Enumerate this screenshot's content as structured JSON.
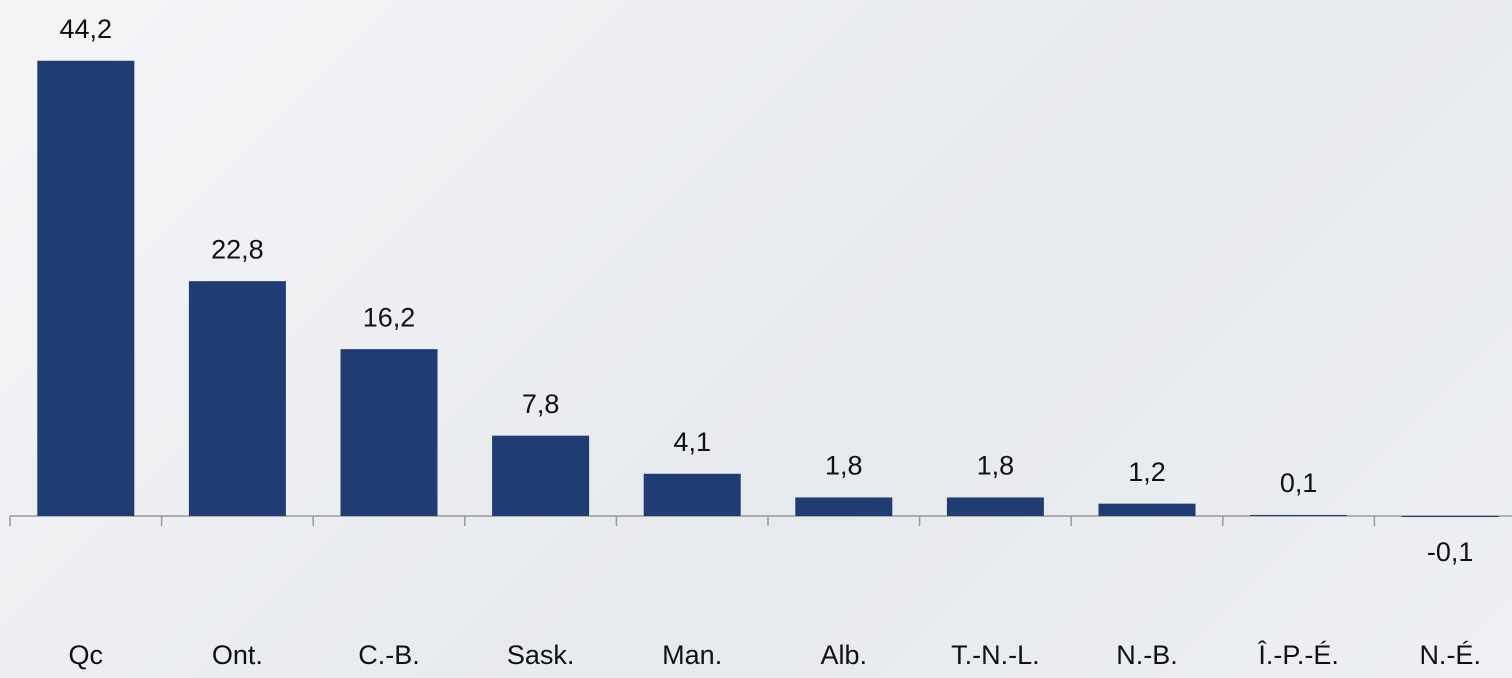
{
  "chart_data": {
    "type": "bar",
    "categories": [
      "Qc",
      "Ont.",
      "C.-B.",
      "Sask.",
      "Man.",
      "Alb.",
      "T.-N.-L.",
      "N.-B.",
      "Î.-P.-É.",
      "N.-É."
    ],
    "values": [
      44.2,
      22.8,
      16.2,
      7.8,
      4.1,
      1.8,
      1.8,
      1.2,
      0.1,
      -0.1
    ],
    "value_labels": [
      "44,2",
      "22,8",
      "16,2",
      "7,8",
      "4,1",
      "1,8",
      "1,8",
      "1,2",
      "0,1",
      "-0,1"
    ],
    "color": "#1f3d73"
  }
}
